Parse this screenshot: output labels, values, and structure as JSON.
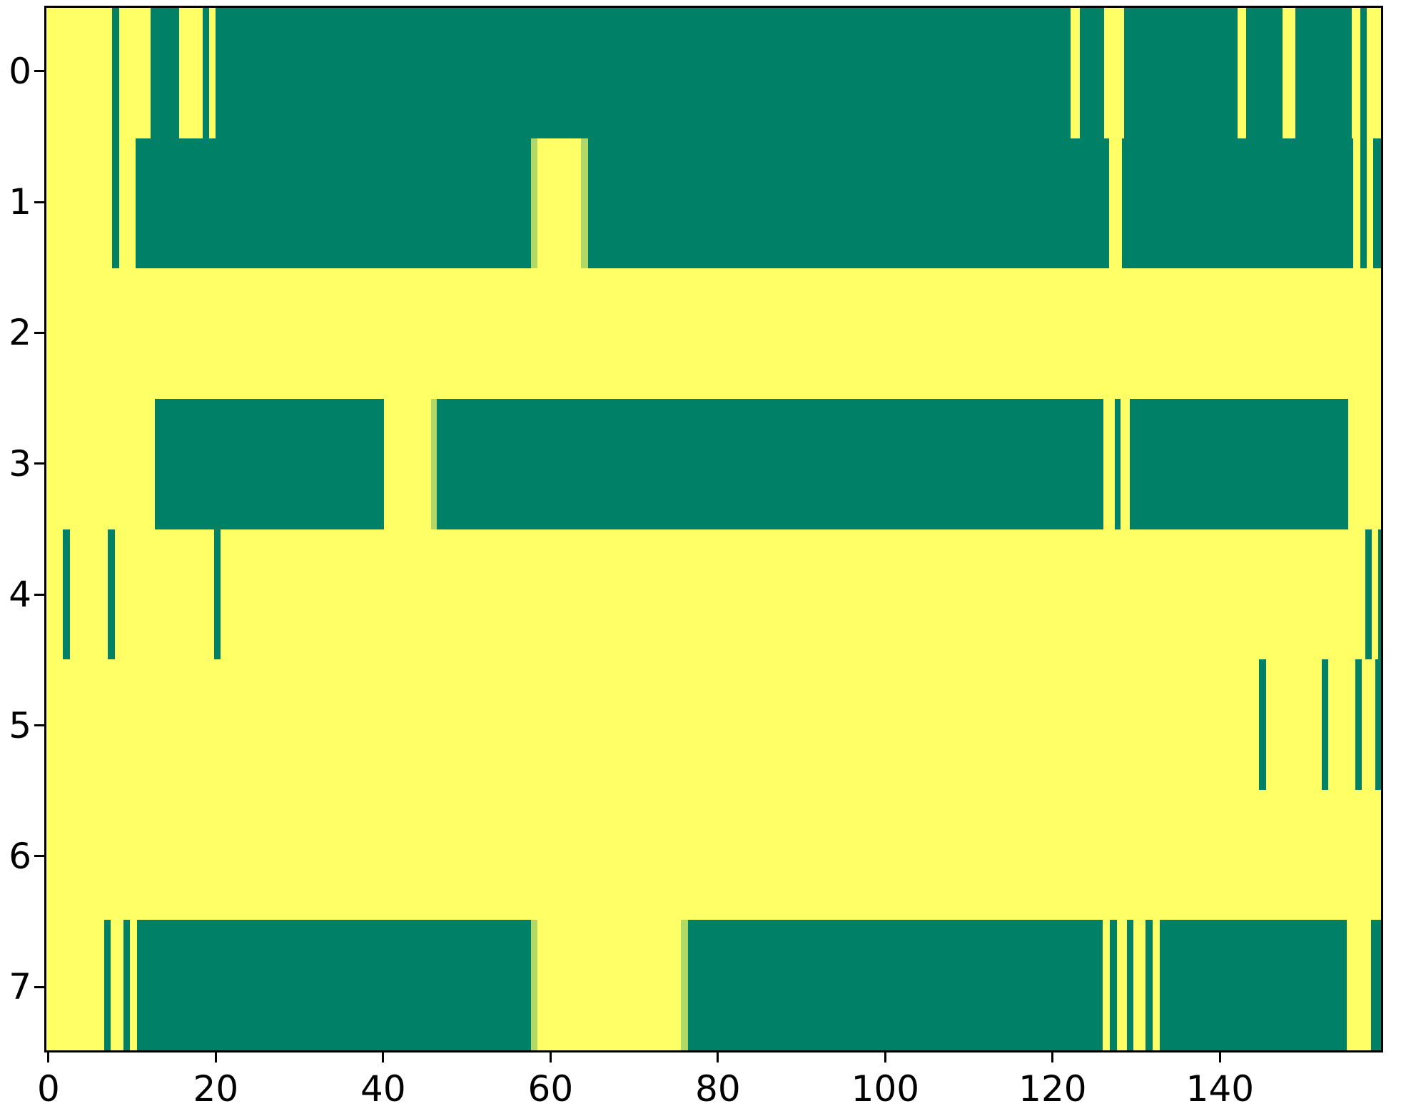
{
  "chart_data": {
    "type": "heatmap",
    "description": "Binary raster / heatmap of 8 rows by 160 columns, summer colormap (green = low, yellow = high)",
    "colormap": "summer",
    "colors": {
      "low_green": "#008066",
      "high_yellow": "#ffff66",
      "mid_blend": "#b2d966",
      "axis": "#000000",
      "figure_background": "#ffffff"
    },
    "n_rows": 8,
    "n_cols": 160,
    "x_range": [
      -0.5,
      159.5
    ],
    "x_ticks": [
      0,
      20,
      40,
      60,
      80,
      100,
      120,
      140
    ],
    "x_tick_labels": [
      "0",
      "20",
      "40",
      "60",
      "80",
      "100",
      "120",
      "140"
    ],
    "y_ticks": [
      0,
      1,
      2,
      3,
      4,
      5,
      6,
      7
    ],
    "y_tick_labels": [
      "0",
      "1",
      "2",
      "3",
      "4",
      "5",
      "6",
      "7"
    ],
    "grid": false,
    "legend": false,
    "rows": [
      {
        "y": 0,
        "green_runs": [
          [
            7.4,
            8.2
          ],
          [
            12.0,
            15.4
          ],
          [
            18.2,
            19.0
          ],
          [
            19.8,
            122.3
          ],
          [
            123.4,
            126.3
          ],
          [
            128.7,
            142.3
          ],
          [
            143.3,
            147.7
          ],
          [
            149.2,
            156.0
          ],
          [
            157.0,
            157.8
          ]
        ],
        "mid_runs": []
      },
      {
        "y": 1,
        "green_runs": [
          [
            7.4,
            8.2
          ],
          [
            10.2,
            57.6
          ],
          [
            64.4,
            126.9
          ],
          [
            128.4,
            156.2
          ],
          [
            157.0,
            157.8
          ],
          [
            158.6,
            160
          ]
        ],
        "mid_runs": [
          [
            57.6,
            58.4
          ],
          [
            63.6,
            64.4
          ]
        ]
      },
      {
        "y": 2,
        "green_runs": [],
        "mid_runs": []
      },
      {
        "y": 3,
        "green_runs": [
          [
            12.5,
            40.0
          ],
          [
            46.3,
            126.2
          ],
          [
            127.6,
            128.3
          ],
          [
            129.4,
            155.6
          ]
        ],
        "mid_runs": [
          [
            45.6,
            46.3
          ]
        ]
      },
      {
        "y": 4,
        "green_runs": [
          [
            1.5,
            2.3
          ],
          [
            6.9,
            7.7
          ],
          [
            19.6,
            20.4
          ],
          [
            157.6,
            158.4
          ],
          [
            159.2,
            160
          ]
        ],
        "mid_runs": []
      },
      {
        "y": 5,
        "green_runs": [
          [
            144.9,
            145.7
          ],
          [
            152.4,
            153.2
          ],
          [
            156.4,
            157.2
          ],
          [
            158.8,
            159.6
          ]
        ],
        "mid_runs": []
      },
      {
        "y": 6,
        "green_runs": [],
        "mid_runs": []
      },
      {
        "y": 7,
        "green_runs": [
          [
            6.4,
            7.2
          ],
          [
            8.7,
            9.5
          ],
          [
            10.4,
            57.6
          ],
          [
            76.4,
            126.1
          ],
          [
            127.0,
            127.8
          ],
          [
            129.0,
            129.8
          ],
          [
            131.3,
            132.1
          ],
          [
            133.0,
            155.4
          ],
          [
            158.3,
            160
          ]
        ],
        "mid_runs": [
          [
            57.6,
            58.4
          ],
          [
            75.6,
            76.4
          ]
        ]
      }
    ]
  }
}
